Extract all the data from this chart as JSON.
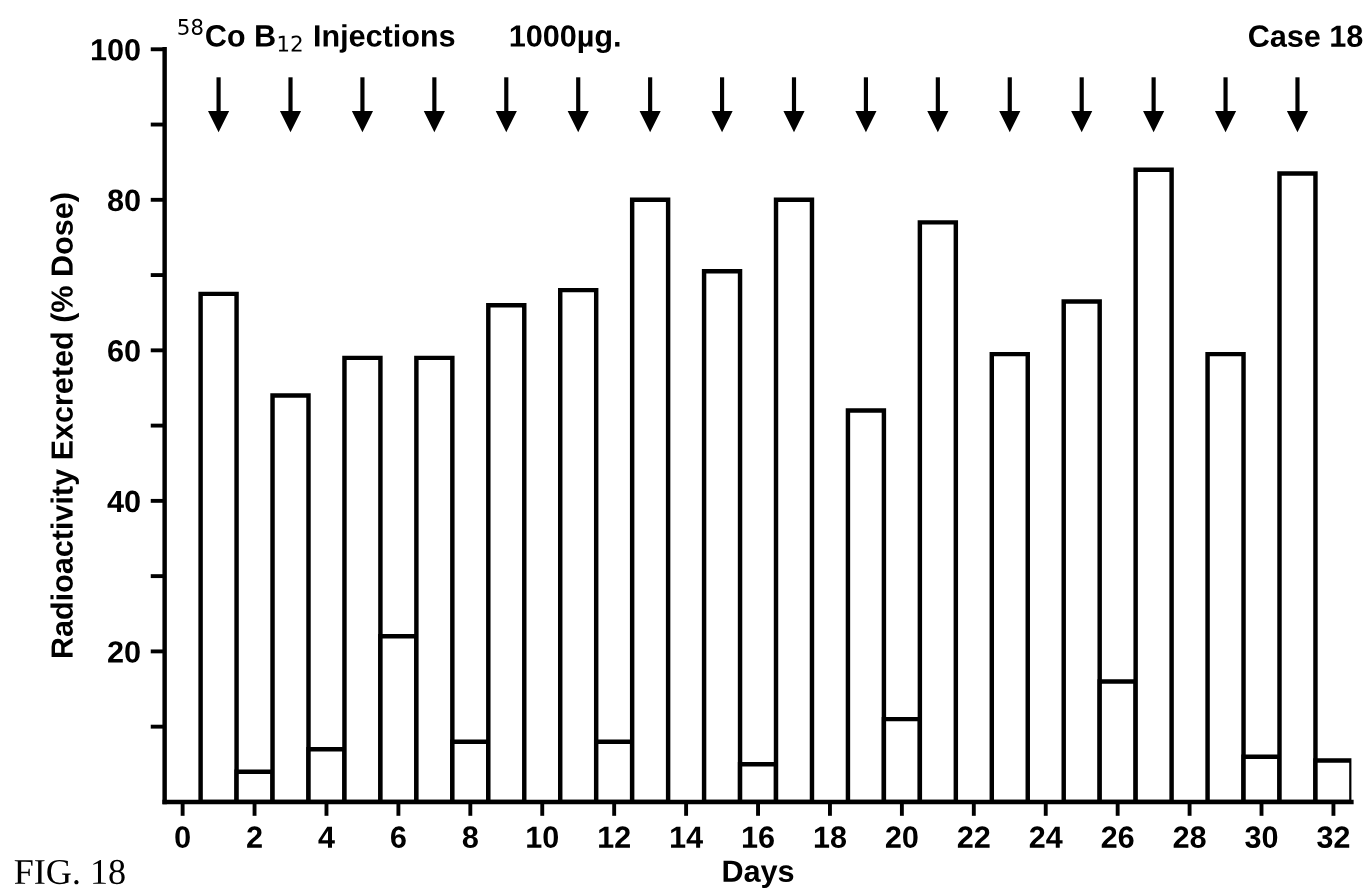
{
  "chart_data": {
    "type": "bar",
    "xlabel": "Days",
    "ylabel": "Radioactivity Excreted (% Dose)",
    "x": [
      1,
      2,
      3,
      4,
      5,
      6,
      7,
      8,
      9,
      10,
      11,
      12,
      13,
      14,
      15,
      16,
      17,
      18,
      19,
      20,
      21,
      22,
      23,
      24,
      25,
      26,
      27,
      28,
      29,
      30,
      31,
      32
    ],
    "values": [
      67.5,
      4,
      54,
      7,
      59,
      22,
      59,
      8,
      66,
      null,
      68,
      8,
      80,
      null,
      70.5,
      5,
      80,
      null,
      52,
      11,
      77,
      null,
      59.5,
      null,
      66.5,
      16,
      84,
      null,
      59.5,
      6,
      83.5,
      5.5
    ],
    "color": "#ffffff",
    "xlim": [
      -0.5,
      32.5
    ],
    "xticks": [
      0,
      2,
      4,
      6,
      8,
      10,
      12,
      14,
      16,
      18,
      20,
      22,
      24,
      26,
      28,
      30,
      32
    ],
    "ylim": [
      0,
      100
    ],
    "yticks": [
      {
        "value": 10,
        "label": null
      },
      20,
      {
        "value": 30,
        "label": null
      },
      40,
      {
        "value": 50,
        "label": null
      },
      60,
      {
        "value": 70,
        "label": null
      },
      80,
      {
        "value": 90,
        "label": null
      },
      100
    ],
    "grid": false,
    "legend": false,
    "annotations": [
      "$^{58}$Co B$_{12}$ Injections",
      "1000µg.",
      "Case 18",
      "FIG. 18"
    ]
  }
}
